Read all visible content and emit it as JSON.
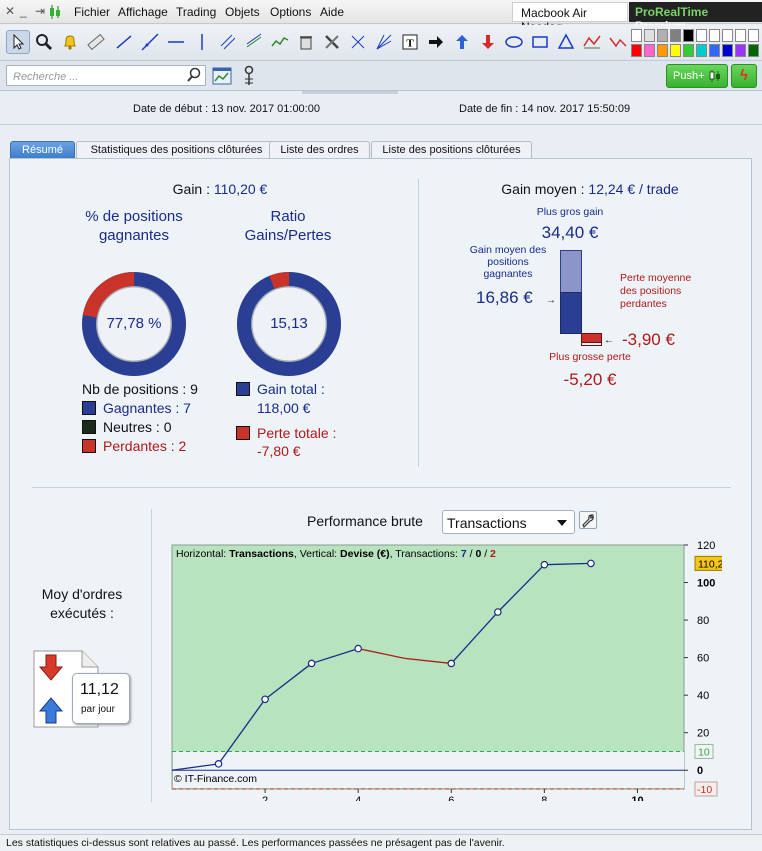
{
  "menu": {
    "items": [
      "Fichier",
      "Affichage",
      "Trading",
      "Objets",
      "Options",
      "Aide"
    ],
    "instrument": "Macbook Air Nasdaq",
    "brand_green": "ProRealTime",
    "brand_white": "Premium"
  },
  "search": {
    "placeholder": "Recherche ...",
    "push_label": "Push+"
  },
  "period": {
    "start_label": "Date de début :",
    "start_value": "13 nov. 2017 01:00:00",
    "end_label": "Date de fin :",
    "end_value": "14 nov. 2017 15:50:09"
  },
  "tabs": [
    "Résumé",
    "Statistiques des positions clôturées",
    "Liste des ordres",
    "Liste des positions clôturées"
  ],
  "summary": {
    "gain_label": "Gain :",
    "gain_value": "110,20 €",
    "winning_pct_title": "% de positions gagnantes",
    "winning_pct_value": "77,78 %",
    "winning_pct": 0.7778,
    "ratio_title": "Ratio Gains/Pertes",
    "ratio_value": "15,13",
    "ratio_gain_share": 0.938,
    "nb_positions": "Nb de positions : 9",
    "gagnantes": "Gagnantes : 7",
    "neutres": "Neutres : 0",
    "perdantes": "Perdantes : 2",
    "gain_total_label": "Gain total :",
    "gain_total_value": "118,00 €",
    "perte_totale_label": "Perte totale :",
    "perte_totale_value": "-7,80 €"
  },
  "avg_gain": {
    "label": "Gain moyen :",
    "value": "12,24 € / trade",
    "best_label": "Plus gros gain",
    "best_value": "34,40 €",
    "avg_win_label": "Gain moyen des positions gagnantes",
    "avg_win_value": "16,86 €",
    "avg_loss_label": "Perte moyenne des positions perdantes",
    "avg_loss_value": "-3,90 €",
    "worst_label": "Plus grosse perte",
    "worst_value": "-5,20 €"
  },
  "orders": {
    "title": "Moy d'ordres exécutés :",
    "value": "11,12",
    "unit": "par jour"
  },
  "performance": {
    "title": "Performance brute",
    "select_value": "Transactions",
    "chart_header_h": "Horizontal:",
    "chart_header_h_val": "Transactions",
    "chart_header_v": ", Vertical:",
    "chart_header_v_val": "Devise (€)",
    "chart_header_t": ", Transactions:",
    "chart_header_wins": "7",
    "chart_header_sep1": " / ",
    "chart_header_neutral": "0",
    "chart_header_sep2": " / ",
    "chart_header_losses": "2",
    "copyright": "© IT-Finance.com"
  },
  "colors": {
    "navy": "#1a2b8a",
    "dark_red": "#b01818",
    "chart_green": "#b8e3bf",
    "ring_blue": "#2a3f93",
    "ring_red": "#c9332a"
  },
  "footer": "Les statistiques ci-dessus sont relatives au passé. Les performances passées ne présagent pas de l'avenir.",
  "chart_data": {
    "type": "line",
    "xlabel": "",
    "ylabel": "",
    "x": [
      0,
      1,
      2,
      3,
      4,
      5,
      6,
      7,
      8,
      9
    ],
    "values": [
      0,
      3.4,
      37.8,
      56.9,
      64.8,
      59.6,
      56.9,
      84.3,
      109.5,
      110.2
    ],
    "xlim": [
      0,
      11
    ],
    "ylim": [
      -10,
      120
    ],
    "x_ticks": [
      "2",
      "4",
      "6",
      "8",
      "10"
    ],
    "y_ticks": [
      "120",
      "100",
      "80",
      "60",
      "40",
      "20",
      "0"
    ],
    "current_value_label": "110,2",
    "band_upper_label": "10",
    "band_lower_label": "-10",
    "band": [
      -10,
      10
    ],
    "grid": false
  }
}
